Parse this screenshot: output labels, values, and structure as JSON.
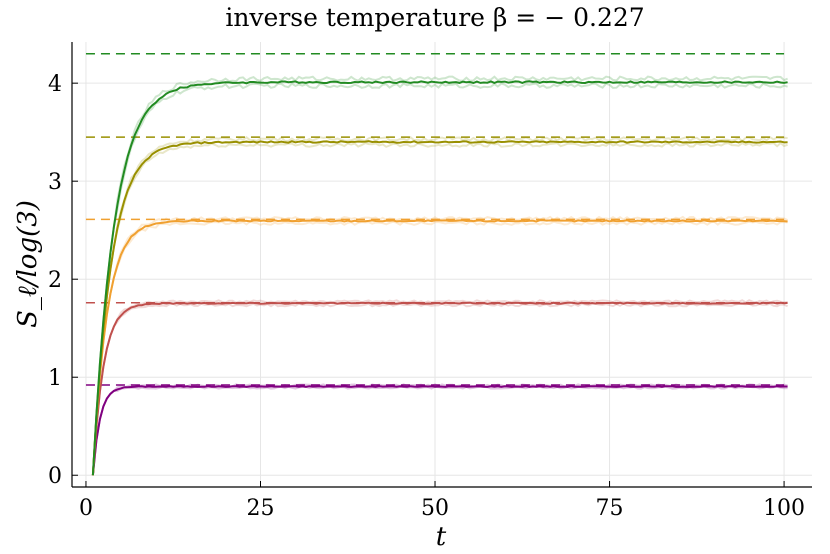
{
  "chart_data": {
    "type": "line",
    "title": "inverse temperature β = − 0.227",
    "xlabel": "t",
    "ylabel": "S_ℓ/log(3)",
    "xlim": [
      -2,
      104
    ],
    "ylim": [
      -0.12,
      4.42
    ],
    "x_ticks": [
      0,
      25,
      50,
      75,
      100
    ],
    "y_ticks": [
      0,
      1,
      2,
      3,
      4
    ],
    "grid": true,
    "legend": "none",
    "series": [
      {
        "color": "#800080",
        "asymptote": 0.905,
        "saturation": 0.905,
        "limit_dashed": 0.92,
        "rise_scale": 1.0
      },
      {
        "color": "#c0504d",
        "asymptote": 1.755,
        "saturation": 1.755,
        "limit_dashed": 1.76,
        "rise_scale": 1.5
      },
      {
        "color": "#f0a030",
        "asymptote": 2.595,
        "saturation": 2.595,
        "limit_dashed": 2.61,
        "rise_scale": 2.0
      },
      {
        "color": "#999000",
        "asymptote": 3.4,
        "saturation": 3.4,
        "limit_dashed": 3.45,
        "rise_scale": 2.6
      },
      {
        "color": "#228b22",
        "asymptote": 4.01,
        "saturation": 4.01,
        "limit_dashed": 4.3,
        "rise_scale": 3.0
      }
    ]
  }
}
